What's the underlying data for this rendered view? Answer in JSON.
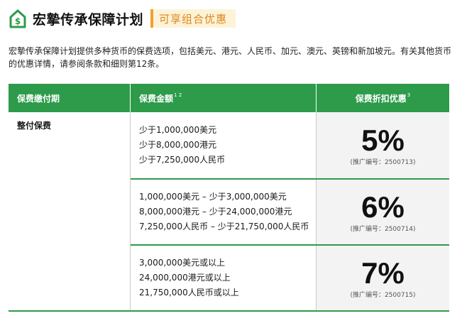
{
  "header": {
    "title": "宏摯传承保障计划",
    "badge": "可享组合优惠"
  },
  "intro": "宏摯传承保障计划提供多种货币的保费选项，包括美元、港元、人民币、加元、澳元、英镑和新加坡元。有关其他货币的优惠详情，请参阅条款和细则第12条。",
  "colors": {
    "green": "#2d9b4a",
    "orange": "#f0a12b",
    "badge_bg": "#fdf3d8"
  },
  "table": {
    "headers": {
      "payment_term": "保费缴付期",
      "premium_amount": "保费金额",
      "premium_amount_sup": "1 2",
      "discount": "保费折扣优惠",
      "discount_sup": "3"
    },
    "payment_term_value": "整付保费",
    "rows": [
      {
        "amounts": [
          "少于1,000,000美元",
          "少于8,000,000港元",
          "少于7,250,000人民币"
        ],
        "discount": "5%",
        "promo_code": "(推广编号：2500713)"
      },
      {
        "amounts": [
          "1,000,000美元 – 少于3,000,000美元",
          "8,000,000港元 – 少于24,000,000港元",
          "7,250,000人民币 – 少于21,750,000人民币"
        ],
        "discount": "6%",
        "promo_code": "(推广编号：2500714)"
      },
      {
        "amounts": [
          "3,000,000美元或以上",
          "24,000,000港元或以上",
          "21,750,000人民币或以上"
        ],
        "discount": "7%",
        "promo_code": "(推广编号：2500715)"
      }
    ]
  }
}
